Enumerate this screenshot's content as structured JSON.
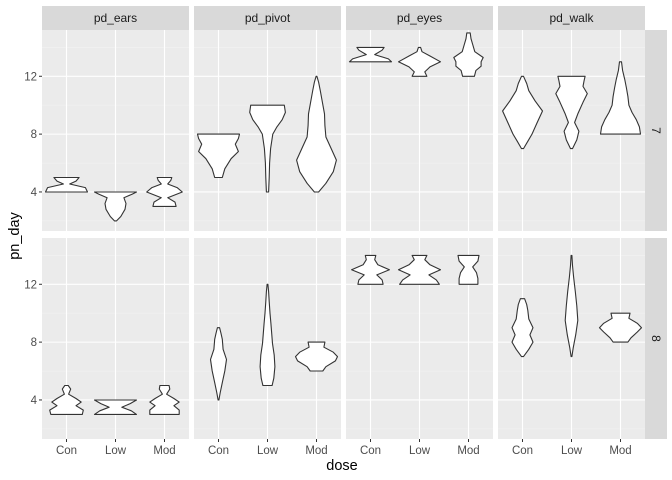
{
  "chart_data": {
    "type": "violin",
    "xlabel": "dose",
    "ylabel": "pn_day",
    "categories": [
      "Con",
      "Low",
      "Mod"
    ],
    "y_ticks": [
      4,
      8,
      12
    ],
    "ylim": [
      1.3,
      15.2
    ],
    "column_facets": [
      "pd_ears",
      "pd_pivot",
      "pd_eyes",
      "pd_walk"
    ],
    "row_facets": [
      "7",
      "8"
    ],
    "grid": true,
    "panels": [
      {
        "row": "7",
        "col": "pd_ears",
        "violins": [
          {
            "x": "Con",
            "profile": [
              [
                4.0,
                1.0
              ],
              [
                4.3,
                0.9
              ],
              [
                4.55,
                0.15
              ],
              [
                4.75,
                0.45
              ],
              [
                5.0,
                0.6
              ]
            ]
          },
          {
            "x": "Low",
            "profile": [
              [
                2.0,
                0.05
              ],
              [
                2.3,
                0.25
              ],
              [
                2.8,
                0.45
              ],
              [
                3.2,
                0.5
              ],
              [
                3.6,
                0.4
              ],
              [
                3.85,
                0.8
              ],
              [
                4.0,
                1.0
              ]
            ]
          },
          {
            "x": "Mod",
            "profile": [
              [
                3.0,
                0.55
              ],
              [
                3.3,
                0.5
              ],
              [
                3.6,
                0.15
              ],
              [
                4.0,
                0.85
              ],
              [
                4.3,
                0.6
              ],
              [
                4.55,
                0.15
              ],
              [
                4.8,
                0.3
              ],
              [
                5.0,
                0.35
              ]
            ]
          }
        ]
      },
      {
        "row": "7",
        "col": "pd_pivot",
        "violins": [
          {
            "x": "Con",
            "profile": [
              [
                5.0,
                0.18
              ],
              [
                5.6,
                0.3
              ],
              [
                6.3,
                0.6
              ],
              [
                6.8,
                0.95
              ],
              [
                7.3,
                0.8
              ],
              [
                7.7,
                0.95
              ],
              [
                8.0,
                1.0
              ]
            ]
          },
          {
            "x": "Low",
            "profile": [
              [
                4.0,
                0.05
              ],
              [
                5.0,
                0.08
              ],
              [
                6.0,
                0.1
              ],
              [
                7.0,
                0.15
              ],
              [
                8.0,
                0.25
              ],
              [
                8.5,
                0.45
              ],
              [
                9.0,
                0.7
              ],
              [
                9.5,
                0.85
              ],
              [
                10.0,
                0.8
              ]
            ]
          },
          {
            "x": "Mod",
            "profile": [
              [
                4.0,
                0.1
              ],
              [
                4.6,
                0.45
              ],
              [
                5.4,
                0.8
              ],
              [
                6.2,
                0.95
              ],
              [
                7.0,
                0.7
              ],
              [
                7.8,
                0.45
              ],
              [
                8.6,
                0.4
              ],
              [
                9.4,
                0.38
              ],
              [
                10.2,
                0.28
              ],
              [
                11.0,
                0.18
              ],
              [
                11.6,
                0.1
              ],
              [
                12.0,
                0.02
              ]
            ]
          }
        ]
      },
      {
        "row": "7",
        "col": "pd_eyes",
        "violins": [
          {
            "x": "Con",
            "profile": [
              [
                13.0,
                1.0
              ],
              [
                13.2,
                0.85
              ],
              [
                13.5,
                0.2
              ],
              [
                13.8,
                0.55
              ],
              [
                14.0,
                0.65
              ]
            ]
          },
          {
            "x": "Low",
            "profile": [
              [
                12.0,
                0.35
              ],
              [
                12.3,
                0.25
              ],
              [
                12.65,
                0.5
              ],
              [
                13.0,
                1.0
              ],
              [
                13.4,
                0.5
              ],
              [
                13.7,
                0.12
              ],
              [
                14.0,
                0.05
              ]
            ]
          },
          {
            "x": "Mod",
            "profile": [
              [
                12.0,
                0.28
              ],
              [
                12.4,
                0.35
              ],
              [
                12.7,
                0.6
              ],
              [
                13.0,
                0.6
              ],
              [
                13.3,
                0.7
              ],
              [
                13.7,
                0.3
              ],
              [
                14.2,
                0.2
              ],
              [
                14.6,
                0.12
              ],
              [
                15.0,
                0.08
              ]
            ]
          }
        ]
      },
      {
        "row": "7",
        "col": "pd_walk",
        "violins": [
          {
            "x": "Con",
            "profile": [
              [
                7.0,
                0.05
              ],
              [
                7.5,
                0.25
              ],
              [
                8.0,
                0.45
              ],
              [
                8.8,
                0.7
              ],
              [
                9.6,
                0.95
              ],
              [
                10.3,
                0.6
              ],
              [
                11.0,
                0.3
              ],
              [
                11.5,
                0.2
              ],
              [
                12.0,
                0.05
              ]
            ]
          },
          {
            "x": "Low",
            "profile": [
              [
                7.0,
                0.05
              ],
              [
                7.6,
                0.25
              ],
              [
                8.2,
                0.35
              ],
              [
                8.8,
                0.15
              ],
              [
                9.4,
                0.3
              ],
              [
                10.2,
                0.55
              ],
              [
                10.8,
                0.75
              ],
              [
                11.3,
                0.55
              ],
              [
                11.7,
                0.6
              ],
              [
                12.0,
                0.65
              ]
            ]
          },
          {
            "x": "Mod",
            "profile": [
              [
                8.0,
                0.95
              ],
              [
                8.5,
                0.9
              ],
              [
                9.0,
                0.75
              ],
              [
                9.5,
                0.55
              ],
              [
                10.0,
                0.4
              ],
              [
                10.6,
                0.35
              ],
              [
                11.2,
                0.28
              ],
              [
                11.8,
                0.2
              ],
              [
                12.4,
                0.1
              ],
              [
                13.0,
                0.05
              ]
            ]
          }
        ]
      },
      {
        "row": "8",
        "col": "pd_ears",
        "violins": [
          {
            "x": "Con",
            "profile": [
              [
                3.0,
                0.75
              ],
              [
                3.3,
                0.8
              ],
              [
                3.6,
                0.45
              ],
              [
                3.85,
                0.7
              ],
              [
                4.1,
                0.45
              ],
              [
                4.4,
                0.1
              ],
              [
                4.75,
                0.2
              ],
              [
                5.0,
                0.08
              ]
            ]
          },
          {
            "x": "Low",
            "profile": [
              [
                3.0,
                1.0
              ],
              [
                3.25,
                0.75
              ],
              [
                3.5,
                0.3
              ],
              [
                3.75,
                0.7
              ],
              [
                4.0,
                1.0
              ]
            ]
          },
          {
            "x": "Mod",
            "profile": [
              [
                3.0,
                0.7
              ],
              [
                3.3,
                0.7
              ],
              [
                3.6,
                0.45
              ],
              [
                3.85,
                0.7
              ],
              [
                4.1,
                0.45
              ],
              [
                4.4,
                0.1
              ],
              [
                4.75,
                0.25
              ],
              [
                5.0,
                0.22
              ]
            ]
          }
        ]
      },
      {
        "row": "8",
        "col": "pd_pivot",
        "violins": [
          {
            "x": "Con",
            "profile": [
              [
                4.0,
                0.02
              ],
              [
                4.5,
                0.08
              ],
              [
                5.2,
                0.18
              ],
              [
                6.0,
                0.3
              ],
              [
                6.8,
                0.38
              ],
              [
                7.5,
                0.22
              ],
              [
                8.2,
                0.18
              ],
              [
                8.6,
                0.12
              ],
              [
                9.0,
                0.05
              ]
            ]
          },
          {
            "x": "Low",
            "profile": [
              [
                5.0,
                0.22
              ],
              [
                5.5,
                0.3
              ],
              [
                6.3,
                0.35
              ],
              [
                7.1,
                0.32
              ],
              [
                7.9,
                0.24
              ],
              [
                8.6,
                0.2
              ],
              [
                9.3,
                0.16
              ],
              [
                10.0,
                0.12
              ],
              [
                10.8,
                0.08
              ],
              [
                11.5,
                0.05
              ],
              [
                12.0,
                0.02
              ]
            ]
          },
          {
            "x": "Mod",
            "profile": [
              [
                6.0,
                0.3
              ],
              [
                6.3,
                0.45
              ],
              [
                6.7,
                0.9
              ],
              [
                7.0,
                1.0
              ],
              [
                7.3,
                0.8
              ],
              [
                7.65,
                0.35
              ],
              [
                8.0,
                0.4
              ]
            ]
          }
        ]
      },
      {
        "row": "8",
        "col": "pd_eyes",
        "violins": [
          {
            "x": "Con",
            "profile": [
              [
                12.0,
                0.6
              ],
              [
                12.3,
                0.55
              ],
              [
                12.65,
                0.3
              ],
              [
                13.0,
                0.9
              ],
              [
                13.35,
                0.35
              ],
              [
                13.7,
                0.2
              ],
              [
                14.0,
                0.25
              ]
            ]
          },
          {
            "x": "Low",
            "profile": [
              [
                12.0,
                0.95
              ],
              [
                12.3,
                0.8
              ],
              [
                12.65,
                0.45
              ],
              [
                13.0,
                1.0
              ],
              [
                13.35,
                0.5
              ],
              [
                13.7,
                0.25
              ],
              [
                14.0,
                0.35
              ]
            ]
          },
          {
            "x": "Mod",
            "profile": [
              [
                12.0,
                0.45
              ],
              [
                12.4,
                0.45
              ],
              [
                12.8,
                0.38
              ],
              [
                13.2,
                0.2
              ],
              [
                13.6,
                0.45
              ],
              [
                14.0,
                0.5
              ]
            ]
          }
        ]
      },
      {
        "row": "8",
        "col": "pd_walk",
        "violins": [
          {
            "x": "Con",
            "profile": [
              [
                7.0,
                0.05
              ],
              [
                7.5,
                0.3
              ],
              [
                8.0,
                0.5
              ],
              [
                8.5,
                0.35
              ],
              [
                9.0,
                0.5
              ],
              [
                9.6,
                0.3
              ],
              [
                10.2,
                0.25
              ],
              [
                10.6,
                0.2
              ],
              [
                11.0,
                0.1
              ]
            ]
          },
          {
            "x": "Low",
            "profile": [
              [
                7.0,
                0.02
              ],
              [
                7.6,
                0.08
              ],
              [
                8.5,
                0.2
              ],
              [
                9.5,
                0.3
              ],
              [
                10.5,
                0.25
              ],
              [
                11.5,
                0.18
              ],
              [
                12.5,
                0.1
              ],
              [
                13.3,
                0.05
              ],
              [
                14.0,
                0.02
              ]
            ]
          },
          {
            "x": "Mod",
            "profile": [
              [
                8.0,
                0.35
              ],
              [
                8.3,
                0.5
              ],
              [
                8.7,
                0.8
              ],
              [
                9.0,
                1.0
              ],
              [
                9.3,
                0.8
              ],
              [
                9.65,
                0.4
              ],
              [
                10.0,
                0.45
              ]
            ]
          }
        ]
      }
    ]
  }
}
